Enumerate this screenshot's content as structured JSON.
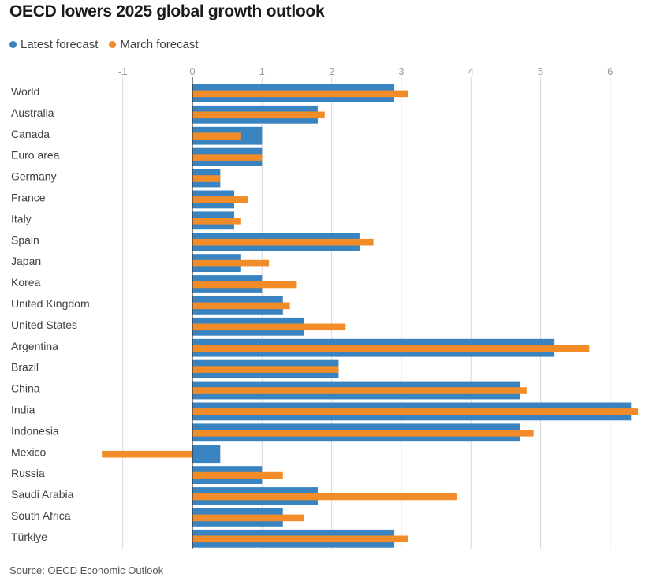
{
  "title": "OECD lowers 2025 global growth outlook",
  "source": "Source: OECD Economic Outlook",
  "colors": {
    "latest": "#3a83c1",
    "march": "#f28c28",
    "grid": "#d9d9d9",
    "axis": "#333333"
  },
  "chart_data": {
    "type": "bar",
    "orientation": "horizontal",
    "title": "OECD lowers 2025 global growth outlook",
    "xlabel": "",
    "ylabel": "",
    "xlim": [
      -1.3,
      6.4
    ],
    "ticks": [
      -1,
      0,
      1,
      2,
      3,
      4,
      5,
      6
    ],
    "tick_labels": [
      "-1",
      "0",
      "1",
      "2",
      "3",
      "4",
      "5",
      "6"
    ],
    "grid": true,
    "legend_position": "top-left",
    "categories": [
      "World",
      "Australia",
      "Canada",
      "Euro area",
      "Germany",
      "France",
      "Italy",
      "Spain",
      "Japan",
      "Korea",
      "United Kingdom",
      "United States",
      "Argentina",
      "Brazil",
      "China",
      "India",
      "Indonesia",
      "Mexico",
      "Russia",
      "Saudi Arabia",
      "South Africa",
      "Türkiye"
    ],
    "series": [
      {
        "name": "Latest forecast",
        "color": "#3a83c1",
        "values": [
          2.9,
          1.8,
          1.0,
          1.0,
          0.4,
          0.6,
          0.6,
          2.4,
          0.7,
          1.0,
          1.3,
          1.6,
          5.2,
          2.1,
          4.7,
          6.3,
          4.7,
          0.4,
          1.0,
          1.8,
          1.3,
          2.9
        ]
      },
      {
        "name": "March forecast",
        "color": "#f28c28",
        "values": [
          3.1,
          1.9,
          0.7,
          1.0,
          0.4,
          0.8,
          0.7,
          2.6,
          1.1,
          1.5,
          1.4,
          2.2,
          5.7,
          2.1,
          4.8,
          6.4,
          4.9,
          -1.3,
          1.3,
          3.8,
          1.6,
          3.1
        ]
      }
    ]
  }
}
